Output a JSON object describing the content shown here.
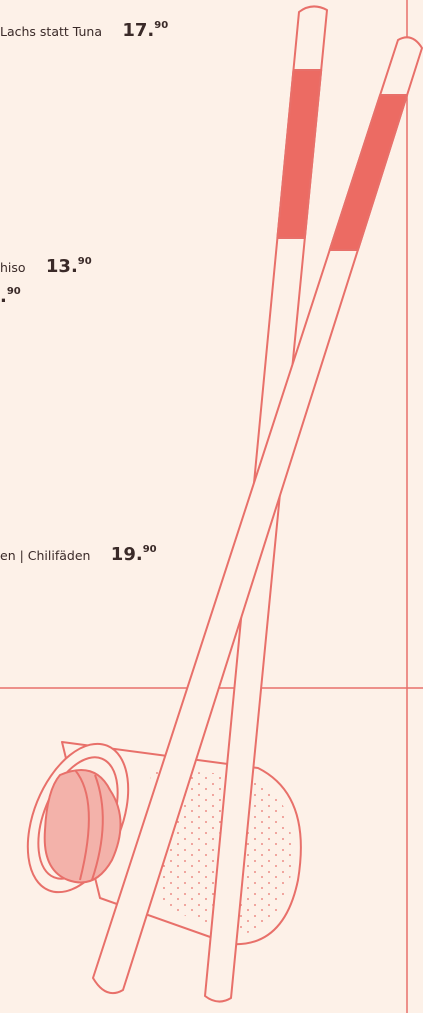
{
  "menu": {
    "items": [
      {
        "text": "Lachs statt Tuna",
        "price_main": "17.",
        "price_cents": "90"
      },
      {
        "text": "hiso",
        "price_main": "13.",
        "price_cents": "90"
      },
      {
        "text": "",
        "price_main": ".",
        "price_cents": "90"
      },
      {
        "text": "en | Chilifäden",
        "price_main": "19.",
        "price_cents": "90"
      }
    ]
  }
}
